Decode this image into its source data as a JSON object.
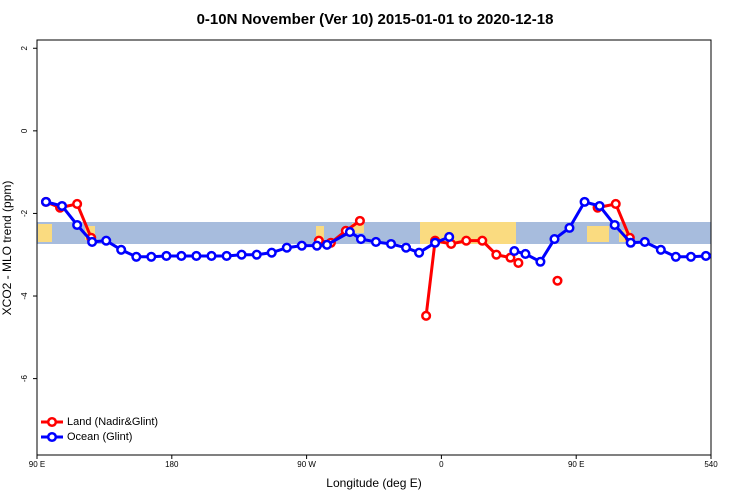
{
  "chart_data": {
    "type": "line",
    "title": "0-10N November (Ver 10)   2015-01-01 to 2020-12-18",
    "x_label": "Longitude (deg E)",
    "y_label": "XCO2 - MLO trend (ppm)",
    "xlim": [
      90,
      540
    ],
    "xticks": [
      {
        "value": 90,
        "label": "90 E"
      },
      180,
      {
        "value": 270,
        "label": "90 W"
      },
      {
        "value": 360,
        "label": "0"
      },
      {
        "value": 450,
        "label": "90 E"
      },
      540
    ],
    "ylim": [
      -7.85,
      2.2
    ],
    "yticks": [
      2,
      0,
      -2,
      -4,
      -6
    ],
    "legend": "bottom-left",
    "series": [
      {
        "name": "Land (Nadir&Glint)",
        "color": "#ff0000",
        "x": [
          96,
          105.4,
          116.8,
          126.2,
          null,
          278.2,
          286.2,
          296.2,
          305.6,
          null,
          349.8,
          355.8,
          366.5,
          376.6,
          387.3,
          396.7,
          406.1,
          411.4,
          null,
          437.5,
          null,
          464.3,
          476.4,
          485.8
        ],
        "values": [
          -1.72,
          -1.86,
          -1.77,
          -2.59,
          null,
          -2.66,
          -2.71,
          -2.42,
          -2.18,
          null,
          -4.48,
          -2.66,
          -2.74,
          -2.66,
          -2.66,
          -3.0,
          -3.07,
          -3.2,
          null,
          -3.63,
          null,
          -1.86,
          -1.77,
          -2.59
        ]
      },
      {
        "name": "Ocean (Glint)",
        "color": "#0000ff",
        "x": [
          96,
          106.7,
          116.8,
          126.8,
          136.2,
          146.2,
          156.3,
          166.3,
          176.4,
          186.4,
          196.4,
          206.5,
          216.6,
          226.6,
          236.7,
          246.7,
          256.8,
          266.8,
          276.9,
          283.6,
          298.9,
          306.3,
          316.3,
          326.4,
          336.4,
          345.1,
          355.8,
          365.2,
          null,
          408.7,
          416.1,
          426.1,
          435.5,
          445.5,
          455.6,
          465.6,
          475.7,
          486.4,
          495.8,
          506.5,
          516.5,
          526.6,
          536.6
        ],
        "values": [
          -1.72,
          -1.82,
          -2.28,
          -2.69,
          -2.66,
          -2.88,
          -3.05,
          -3.05,
          -3.03,
          -3.03,
          -3.03,
          -3.03,
          -3.03,
          -3.0,
          -3.0,
          -2.95,
          -2.83,
          -2.78,
          -2.78,
          -2.76,
          -2.45,
          -2.62,
          -2.69,
          -2.74,
          -2.83,
          -2.95,
          -2.71,
          -2.57,
          null,
          -2.91,
          -2.98,
          -3.17,
          -2.62,
          -2.35,
          -1.72,
          -1.82,
          -2.28,
          -2.71,
          -2.69,
          -2.88,
          -3.05,
          -3.05,
          -3.03
        ]
      }
    ]
  }
}
